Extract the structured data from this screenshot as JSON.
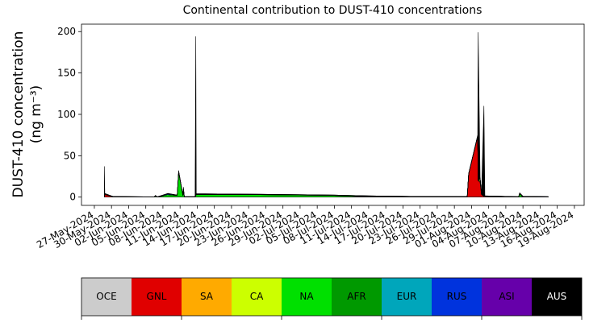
{
  "chart_data": {
    "type": "stackedarea",
    "title": "Continental contribution to DUST-410 concentrations",
    "y_label": [
      "DUST-410 concentration",
      "(ng m⁻³)"
    ],
    "x": [
      "2024-05-28T18:00",
      "2024-05-28T20:00",
      "2024-05-30T06:00",
      "2024-06-06T12:00",
      "2024-06-06T16:00",
      "2024-06-07T00:00",
      "2024-06-08T20:00",
      "2024-06-10T12:00",
      "2024-06-10T18:00",
      "2024-06-11T12:00",
      "2024-06-11T14:00",
      "2024-06-11T18:00",
      "2024-06-13T15:00",
      "2024-06-13T18:00",
      "2024-06-13T20:00",
      "2024-06-25T00:00",
      "2024-07-08T00:00",
      "2024-07-14T00:00",
      "2024-07-22T00:00",
      "2024-07-31T06:00",
      "2024-07-31T12:00",
      "2024-08-02T02:00",
      "2024-08-02T04:00",
      "2024-08-02T12:00",
      "2024-08-02T18:00",
      "2024-08-03T04:00",
      "2024-08-03T08:00",
      "2024-08-09T06:00",
      "2024-08-09T10:00",
      "2024-08-10T00:00",
      "2024-08-14T10:00"
    ],
    "series": [
      {
        "name": "OCE",
        "color": "#cccccc",
        "values": [
          0,
          0,
          0,
          0,
          0,
          0,
          0,
          0,
          0,
          0,
          0,
          0,
          0,
          0,
          0,
          0,
          0,
          0,
          0,
          0,
          0,
          0,
          0,
          0,
          0,
          0,
          0,
          0,
          0,
          0,
          0
        ]
      },
      {
        "name": "GNL",
        "color": "#e00000",
        "values": [
          0,
          3,
          0.5,
          0,
          0,
          0,
          0,
          0,
          0,
          0,
          0,
          0,
          0,
          0,
          0,
          0,
          0,
          0,
          0,
          0,
          28,
          74,
          20,
          18,
          3,
          1,
          1,
          0,
          0,
          0,
          0
        ]
      },
      {
        "name": "SA",
        "color": "#ffaa00",
        "values": [
          0,
          1,
          0,
          0,
          0,
          0,
          0,
          0,
          0,
          0,
          0,
          0,
          0,
          0,
          0,
          0,
          0,
          0,
          0,
          0,
          0,
          0,
          0,
          2,
          0,
          0,
          0,
          0,
          0,
          0,
          0
        ]
      },
      {
        "name": "CA",
        "color": "#ccff00",
        "values": [
          0,
          0,
          0,
          0,
          0,
          0,
          0,
          0,
          0,
          0,
          0,
          0,
          0,
          0,
          0,
          0,
          0,
          0.5,
          0.5,
          0.3,
          0,
          0,
          0,
          3,
          1,
          0,
          0,
          0,
          0,
          0.5,
          0
        ]
      },
      {
        "name": "NA",
        "color": "#00e000",
        "values": [
          0,
          0,
          0,
          0,
          1.5,
          0,
          3,
          2,
          30,
          2,
          10,
          0,
          0,
          2,
          3,
          3,
          2,
          0.5,
          0,
          0,
          0,
          0,
          0,
          0,
          0,
          0,
          0,
          0,
          4,
          0,
          0
        ]
      },
      {
        "name": "AFR",
        "color": "#009900",
        "values": [
          0,
          0,
          0,
          0,
          0,
          0,
          0,
          0,
          1,
          0,
          0,
          0,
          0,
          0,
          0.5,
          0,
          0,
          0,
          0,
          0,
          0,
          0,
          0,
          0,
          0,
          0,
          0,
          0,
          0,
          0,
          0
        ]
      },
      {
        "name": "EUR",
        "color": "#00a6bb",
        "values": [
          0,
          0,
          0,
          0,
          0,
          0,
          0,
          0,
          0,
          0,
          0,
          0,
          0,
          0,
          0,
          0,
          0,
          0,
          0,
          0,
          0,
          0,
          0,
          0,
          0,
          0,
          0,
          0,
          0,
          0,
          0
        ]
      },
      {
        "name": "RUS",
        "color": "#0033dd",
        "values": [
          0,
          0,
          0.3,
          0.3,
          0.5,
          0.3,
          1,
          0.5,
          0,
          0,
          0,
          0.5,
          0.5,
          0,
          0.5,
          0.5,
          0.5,
          0.5,
          0.3,
          0.3,
          0.5,
          0,
          0,
          0,
          0,
          0,
          0.5,
          0.5,
          1,
          0.5,
          0.5
        ]
      },
      {
        "name": "ASI",
        "color": "#6600aa",
        "values": [
          0,
          0,
          0,
          0,
          0,
          0,
          0,
          0,
          0,
          0,
          0,
          0,
          0,
          0,
          0,
          0,
          0,
          0,
          0,
          0,
          0,
          0,
          0,
          0,
          0,
          0,
          0,
          0,
          0,
          0,
          0
        ]
      },
      {
        "name": "AUS",
        "color": "#000000",
        "values": [
          37,
          0.5,
          0,
          0,
          0,
          0,
          0.5,
          0,
          1,
          0.5,
          2,
          0,
          0,
          192,
          0,
          0,
          0,
          0,
          0,
          0,
          0,
          1,
          179,
          0,
          0,
          109,
          0,
          0,
          0,
          0,
          0
        ]
      }
    ],
    "xlim": [
      "2024-05-24T18:00",
      "2024-08-20T17:00"
    ],
    "xticks": [
      {
        "value": "2024-05-27",
        "label": "27-May-2024"
      },
      {
        "value": "2024-05-30",
        "label": "30-May-2024"
      },
      {
        "value": "2024-06-02",
        "label": "02-Jun-2024"
      },
      {
        "value": "2024-06-05",
        "label": "05-Jun-2024"
      },
      {
        "value": "2024-06-08",
        "label": "08-Jun-2024"
      },
      {
        "value": "2024-06-11",
        "label": "11-Jun-2024"
      },
      {
        "value": "2024-06-14",
        "label": "14-Jun-2024"
      },
      {
        "value": "2024-06-17",
        "label": "17-Jun-2024"
      },
      {
        "value": "2024-06-20",
        "label": "20-Jun-2024"
      },
      {
        "value": "2024-06-23",
        "label": "23-Jun-2024"
      },
      {
        "value": "2024-06-26",
        "label": "26-Jun-2024"
      },
      {
        "value": "2024-06-29",
        "label": "29-Jun-2024"
      },
      {
        "value": "2024-07-02",
        "label": "02-Jul-2024"
      },
      {
        "value": "2024-07-05",
        "label": "05-Jul-2024"
      },
      {
        "value": "2024-07-08",
        "label": "08-Jul-2024"
      },
      {
        "value": "2024-07-11",
        "label": "11-Jul-2024"
      },
      {
        "value": "2024-07-14",
        "label": "14-Jul-2024"
      },
      {
        "value": "2024-07-17",
        "label": "17-Jul-2024"
      },
      {
        "value": "2024-07-20",
        "label": "20-Jul-2024"
      },
      {
        "value": "2024-07-23",
        "label": "23-Jul-2024"
      },
      {
        "value": "2024-07-26",
        "label": "26-Jul-2024"
      },
      {
        "value": "2024-07-29",
        "label": "29-Jul-2024"
      },
      {
        "value": "2024-08-01",
        "label": "01-Aug-2024"
      },
      {
        "value": "2024-08-04",
        "label": "04-Aug-2024"
      },
      {
        "value": "2024-08-07",
        "label": "07-Aug-2024"
      },
      {
        "value": "2024-08-10",
        "label": "10-Aug-2024"
      },
      {
        "value": "2024-08-13",
        "label": "13-Aug-2024"
      },
      {
        "value": "2024-08-16",
        "label": "16-Aug-2024"
      },
      {
        "value": "2024-08-19",
        "label": "19-Aug-2024"
      }
    ],
    "ylim": [
      -10,
      209
    ],
    "yticks": [
      0,
      50,
      100,
      150,
      200
    ],
    "legend": "bottom"
  }
}
